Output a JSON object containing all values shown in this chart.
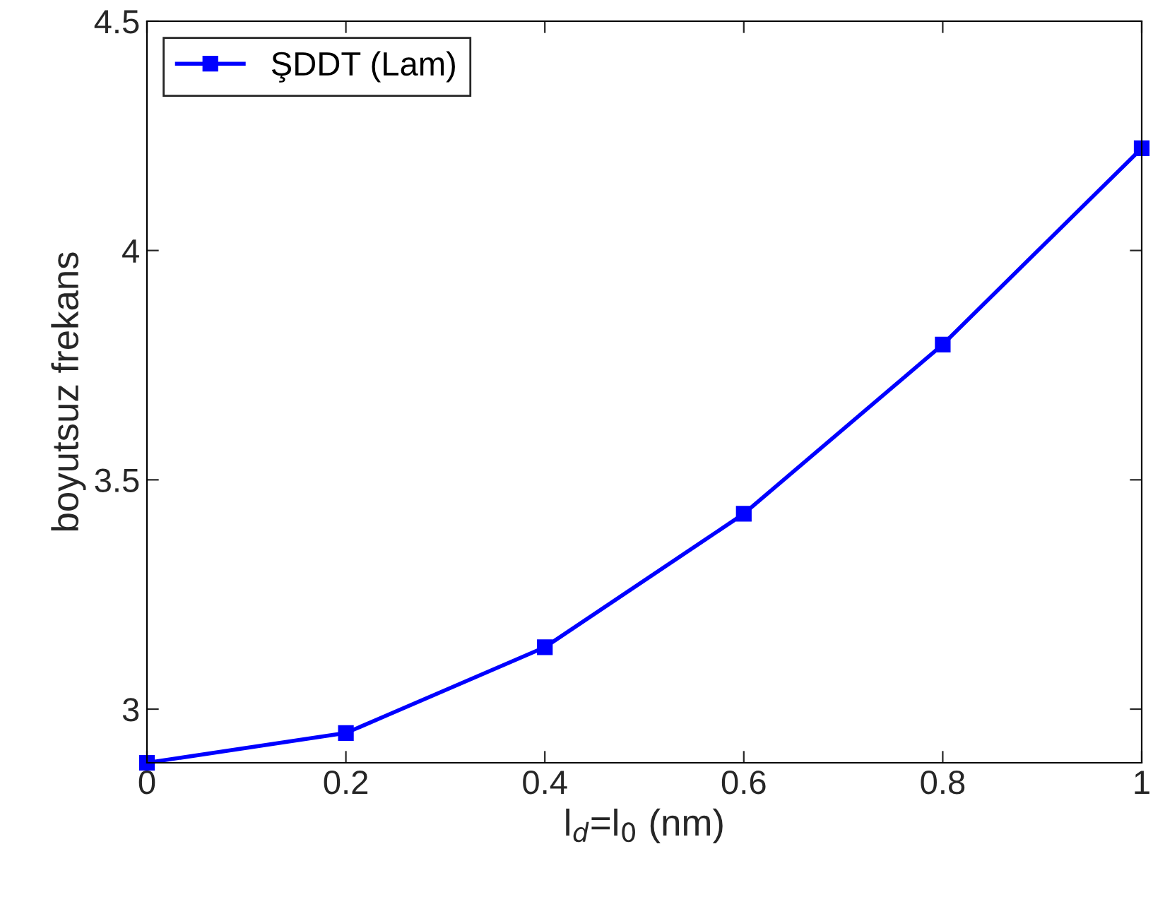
{
  "chart_data": {
    "type": "line",
    "xlabel": "l$_{d}$=l$_{0}$ (nm)",
    "ylabel": "boyutsuz frekans",
    "x": [
      0,
      0.2,
      0.4,
      0.6,
      0.8,
      1
    ],
    "series": [
      {
        "name": "ŞDDT (Lam)",
        "color": "#0000ff",
        "values": [
          2.883,
          2.948,
          3.135,
          3.426,
          3.795,
          4.223
        ]
      }
    ],
    "xlim": [
      0,
      1
    ],
    "xticks": [
      0,
      0.2,
      0.4,
      0.6,
      0.8,
      1
    ],
    "ylim": [
      2.883,
      4.5
    ],
    "yticks": [
      3,
      3.5,
      4,
      4.5
    ],
    "marker": "square",
    "line_style": "solid",
    "grid": false,
    "legend": "top left"
  }
}
